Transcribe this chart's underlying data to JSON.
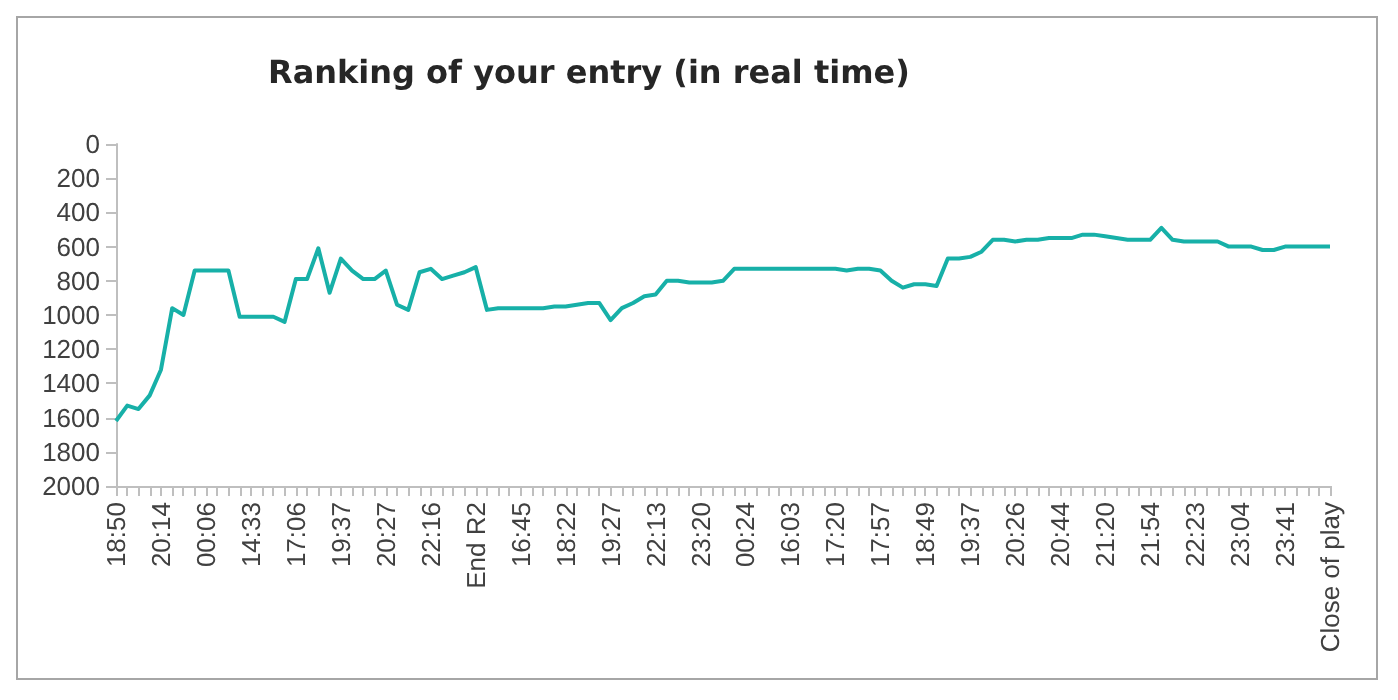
{
  "chart_data": {
    "type": "line",
    "title": "Ranking of your entry (in real time)",
    "categories": [
      "18:50",
      null,
      null,
      null,
      "20:14",
      null,
      null,
      null,
      "00:06",
      null,
      null,
      null,
      "14:33",
      null,
      null,
      null,
      "17:06",
      null,
      null,
      null,
      "19:37",
      null,
      null,
      null,
      "20:27",
      null,
      null,
      null,
      "22:16",
      null,
      null,
      null,
      "End R2",
      null,
      null,
      null,
      "16:45",
      null,
      null,
      null,
      "18:22",
      null,
      null,
      null,
      "19:27",
      null,
      null,
      null,
      "22:13",
      null,
      null,
      null,
      "23:20",
      null,
      null,
      null,
      "00:24",
      null,
      null,
      null,
      "16:03",
      null,
      null,
      null,
      "17:20",
      null,
      null,
      null,
      "17:57",
      null,
      null,
      null,
      "18:49",
      null,
      null,
      null,
      "19:37",
      null,
      null,
      null,
      "20:26",
      null,
      null,
      null,
      "20:44",
      null,
      null,
      null,
      "21:20",
      null,
      null,
      null,
      "21:54",
      null,
      null,
      null,
      "22:23",
      null,
      null,
      null,
      "23:04",
      null,
      null,
      null,
      "23:41",
      null,
      null,
      null,
      "Close of play"
    ],
    "series": [
      {
        "color": "#17b0a8",
        "values": [
          1620,
          1530,
          1550,
          1470,
          1320,
          960,
          1000,
          740,
          740,
          740,
          740,
          1010,
          1010,
          1010,
          1010,
          1040,
          790,
          790,
          610,
          870,
          670,
          740,
          790,
          790,
          740,
          940,
          970,
          750,
          730,
          790,
          770,
          750,
          720,
          970,
          960,
          960,
          960,
          960,
          960,
          950,
          950,
          940,
          930,
          930,
          1030,
          960,
          930,
          890,
          880,
          800,
          800,
          810,
          810,
          810,
          800,
          730,
          730,
          730,
          730,
          730,
          730,
          730,
          730,
          730,
          730,
          740,
          730,
          730,
          740,
          800,
          840,
          820,
          820,
          830,
          670,
          670,
          660,
          630,
          560,
          560,
          570,
          560,
          560,
          550,
          550,
          550,
          530,
          530,
          540,
          550,
          560,
          560,
          560,
          490,
          560,
          570,
          570,
          570,
          570,
          600,
          600,
          600,
          620,
          620,
          600,
          600,
          600,
          600,
          600
        ]
      }
    ],
    "ylim": [
      2000,
      0
    ],
    "yticks": [
      0,
      200,
      400,
      600,
      800,
      1000,
      1200,
      1400,
      1600,
      1800,
      2000
    ],
    "grid": false,
    "marker": "none",
    "line_style": "solid"
  }
}
